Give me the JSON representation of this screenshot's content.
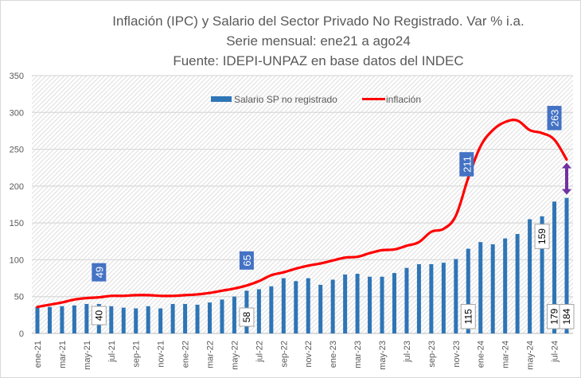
{
  "chart_data": {
    "type": "bar+line",
    "title": "Inflación (IPC) y Salario del Sector Privado No Registrado. Var % i.a.",
    "subtitle": "Serie mensual: ene21 a ago24",
    "source": "Fuente: IDEPI-UNPAZ en base datos del INDEC",
    "xlabel": "",
    "ylabel": "",
    "ylim": [
      0,
      350
    ],
    "yticks": [
      0,
      50,
      100,
      150,
      200,
      250,
      300,
      350
    ],
    "grid": true,
    "legend_position": "top-center",
    "categories": [
      "ene-21",
      "feb-21",
      "mar-21",
      "abr-21",
      "may-21",
      "jun-21",
      "jul-21",
      "ago-21",
      "sep-21",
      "oct-21",
      "nov-21",
      "dic-21",
      "ene-22",
      "feb-22",
      "mar-22",
      "abr-22",
      "may-22",
      "jun-22",
      "jul-22",
      "ago-22",
      "sep-22",
      "oct-22",
      "nov-22",
      "dic-22",
      "ene-23",
      "feb-23",
      "mar-23",
      "abr-23",
      "may-23",
      "jun-23",
      "jul-23",
      "ago-23",
      "sep-23",
      "oct-23",
      "nov-23",
      "dic-23",
      "ene-24",
      "feb-24",
      "mar-24",
      "abr-24",
      "may-24",
      "jun-24",
      "jul-24",
      "ago-24"
    ],
    "xtick_labels": [
      "ene-21",
      "mar-21",
      "may-21",
      "jul-21",
      "sep-21",
      "nov-21",
      "ene-22",
      "mar-22",
      "may-22",
      "jul-22",
      "sep-22",
      "nov-22",
      "ene-23",
      "mar-23",
      "may-23",
      "jul-23",
      "sep-23",
      "nov-23",
      "ene-24",
      "mar-24",
      "may-24",
      "jul-24"
    ],
    "series": [
      {
        "name": "Salario SP no registrado",
        "type": "bar",
        "color": "#2e75b6",
        "values": [
          36,
          36,
          37,
          38,
          40,
          40,
          37,
          35,
          34,
          37,
          34,
          40,
          40,
          39,
          42,
          46,
          50,
          58,
          60,
          64,
          75,
          71,
          75,
          66,
          73,
          80,
          81,
          77,
          77,
          82,
          89,
          94,
          94,
          96,
          101,
          115,
          124,
          121,
          129,
          135,
          155,
          159,
          179,
          184
        ]
      },
      {
        "name": "inflación",
        "type": "line",
        "color": "#ff0000",
        "values": [
          36,
          39,
          42,
          46,
          48,
          49,
          51,
          51,
          52,
          52,
          51,
          51,
          52,
          53,
          55,
          58,
          61,
          65,
          71,
          79,
          83,
          88,
          92,
          95,
          99,
          103,
          104,
          109,
          113,
          114,
          119,
          124,
          138,
          142,
          160,
          211,
          254,
          276,
          287,
          289,
          276,
          272,
          263,
          236
        ]
      }
    ],
    "annotations": [
      {
        "series": "inflación",
        "category": "jun-21",
        "label": "49",
        "style": "blue-box"
      },
      {
        "series": "inflación",
        "category": "jun-22",
        "label": "65",
        "style": "blue-box"
      },
      {
        "series": "inflación",
        "category": "dic-23",
        "label": "211",
        "style": "blue-box"
      },
      {
        "series": "inflación",
        "category": "jul-24",
        "label": "263",
        "style": "blue-box"
      },
      {
        "series": "Salario SP no registrado",
        "category": "jun-21",
        "label": "40",
        "style": "white-box"
      },
      {
        "series": "Salario SP no registrado",
        "category": "jun-22",
        "label": "58",
        "style": "white-box"
      },
      {
        "series": "Salario SP no registrado",
        "category": "dic-23",
        "label": "115",
        "style": "white-box"
      },
      {
        "series": "Salario SP no registrado",
        "category": "jun-24",
        "label": "159",
        "style": "white-box"
      },
      {
        "series": "Salario SP no registrado",
        "category": "jul-24",
        "label": "179",
        "style": "white-box"
      },
      {
        "series": "Salario SP no registrado",
        "category": "ago-24",
        "label": "184",
        "style": "white-box"
      },
      {
        "type": "double-arrow",
        "category": "ago-24",
        "from": 184,
        "to": 236,
        "color": "#7030a0"
      }
    ]
  }
}
